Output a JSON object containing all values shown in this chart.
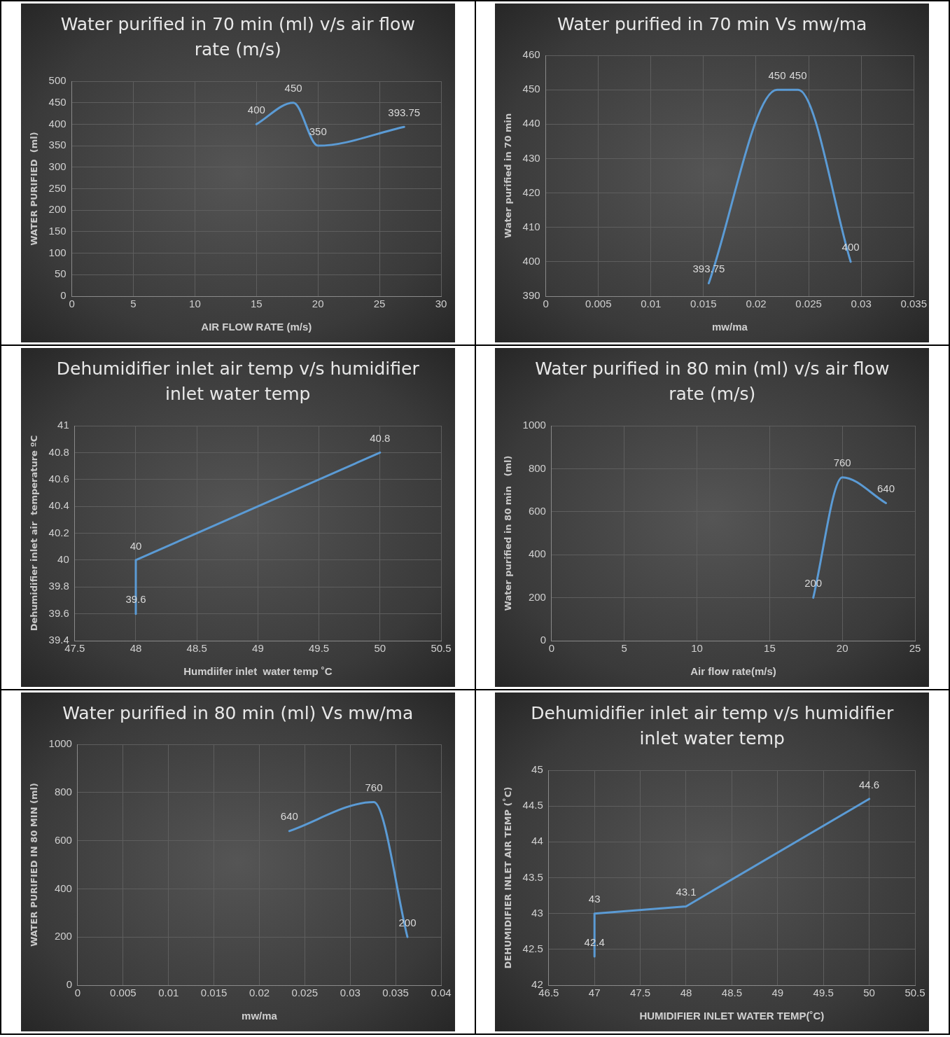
{
  "chart_data": [
    {
      "type": "line",
      "title": "Water purified in 70 min  (ml) v/s air flow rate (m/s)",
      "xlabel": "AIR FLOW RATE (m/s)",
      "ylabel": "WATER PURIFIED  (ml)",
      "x": [
        15,
        18,
        20,
        27
      ],
      "values": [
        400,
        450,
        350,
        393.75
      ],
      "color": "#5b9bd5",
      "xlim": [
        0,
        30
      ],
      "ylim": [
        0,
        500
      ],
      "xticks": [
        0,
        5,
        10,
        15,
        20,
        25,
        30
      ],
      "yticks": [
        0,
        50,
        100,
        150,
        200,
        250,
        300,
        350,
        400,
        450,
        500
      ],
      "grid": true,
      "data_labels": true,
      "marker": "none"
    },
    {
      "type": "line",
      "title": "Water purified  in 70 min Vs mw/ma",
      "xlabel": "mw/ma",
      "ylabel": "Water purified in 70 min",
      "x": [
        0.0155,
        0.022,
        0.024,
        0.029
      ],
      "values": [
        393.75,
        450,
        450,
        400
      ],
      "color": "#5b9bd5",
      "xlim": [
        0,
        0.035
      ],
      "ylim": [
        390,
        460
      ],
      "xticks": [
        0,
        0.005,
        0.01,
        0.015,
        0.02,
        0.025,
        0.03,
        0.035
      ],
      "yticks": [
        390,
        400,
        410,
        420,
        430,
        440,
        450,
        460
      ],
      "grid": true,
      "data_labels": true,
      "marker": "none"
    },
    {
      "type": "line",
      "title": "Dehumidifier inlet air temp v/s humidifier inlet water temp",
      "xlabel": "Humdiifer inlet  water temp ˚C",
      "ylabel": "Dehumidifier inlet air  temperature ºC",
      "x": [
        48,
        48,
        50
      ],
      "values": [
        39.6,
        40,
        40.8
      ],
      "color": "#5b9bd5",
      "xlim": [
        47.5,
        50.5
      ],
      "ylim": [
        39.4,
        41
      ],
      "xticks": [
        47.5,
        48,
        48.5,
        49,
        49.5,
        50,
        50.5
      ],
      "yticks": [
        39.4,
        39.6,
        39.8,
        40,
        40.2,
        40.4,
        40.6,
        40.8,
        41
      ],
      "grid": true,
      "data_labels": true,
      "marker": "none"
    },
    {
      "type": "line",
      "title": "Water purified in 80 min  (ml) v/s air flow rate (m/s)",
      "xlabel": "Air flow rate(m/s)",
      "ylabel": "Water purified in 80 min   (ml)",
      "x": [
        18,
        20,
        23
      ],
      "values": [
        200,
        760,
        640
      ],
      "color": "#5b9bd5",
      "xlim": [
        0,
        25
      ],
      "ylim": [
        0,
        1000
      ],
      "xticks": [
        0,
        5,
        10,
        15,
        20,
        25
      ],
      "yticks": [
        0,
        200,
        400,
        600,
        800,
        1000
      ],
      "grid": true,
      "data_labels": true,
      "marker": "none"
    },
    {
      "type": "line",
      "title": "Water purified  in 80 min (ml) Vs mw/ma",
      "xlabel": "mw/ma",
      "ylabel": "WATER PURIFIED IN 80 MIN (ml)",
      "x": [
        0.0233,
        0.0326,
        0.0363
      ],
      "values": [
        640,
        760,
        200
      ],
      "color": "#5b9bd5",
      "xlim": [
        0,
        0.04
      ],
      "ylim": [
        0,
        1000
      ],
      "xticks": [
        0,
        0.005,
        0.01,
        0.015,
        0.02,
        0.025,
        0.03,
        0.035,
        0.04
      ],
      "yticks": [
        0,
        200,
        400,
        600,
        800,
        1000
      ],
      "grid": true,
      "data_labels": true,
      "marker": "none"
    },
    {
      "type": "line",
      "title": "Dehumidifier inlet air temp v/s humidifier inlet water temp",
      "xlabel": "HUMIDIFIER INLET WATER TEMP(˚C)",
      "ylabel": "DEHUMIDIFIER INLET AIR TEMP (˚C)",
      "x": [
        47,
        47,
        48,
        50
      ],
      "values": [
        42.4,
        43,
        43.1,
        44.6
      ],
      "color": "#5b9bd5",
      "xlim": [
        46.5,
        50.5
      ],
      "ylim": [
        42,
        45
      ],
      "xticks": [
        46.5,
        47,
        47.5,
        48,
        48.5,
        49,
        49.5,
        50,
        50.5
      ],
      "yticks": [
        42,
        42.5,
        43,
        43.5,
        44,
        44.5,
        45
      ],
      "grid": true,
      "data_labels": true,
      "marker": "none"
    }
  ]
}
